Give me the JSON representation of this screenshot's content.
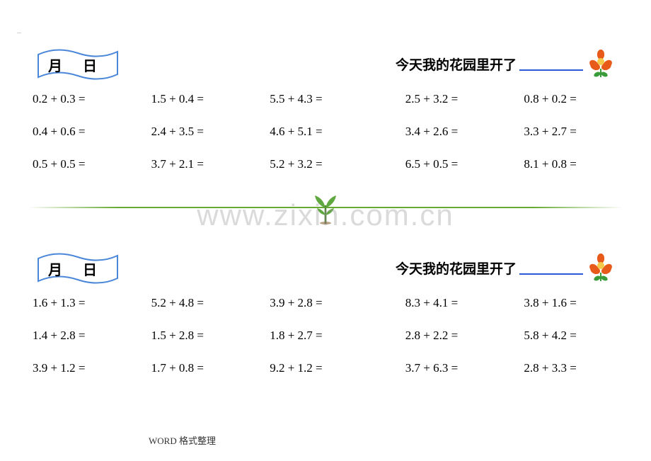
{
  "dots": "...",
  "flag_label": "月 日",
  "garden_text": "今天我的花园里开了",
  "watermark": "www.zixin.com.cn",
  "footer": "WORD 格式整理",
  "colors": {
    "flag_stroke": "#4a87d8",
    "flag_fill": "#ffffff",
    "blank_line": "#2a5bd7",
    "divider": "#66aa33",
    "flower_petal": "#e85a1a",
    "flower_center": "#f7c948",
    "flower_leaf": "#3a9b3a",
    "sprout_leaf": "#5fa83f",
    "sprout_stem": "#4a8030"
  },
  "block1": {
    "problems": [
      "0.2 + 0.3 =",
      "1.5 + 0.4 =",
      "5.5 + 4.3 =",
      "2.5 + 3.2 =",
      "0.8 + 0.2 =",
      "0.4 + 0.6 =",
      "2.4 + 3.5 =",
      "4.6 + 5.1 =",
      "3.4 + 2.6 =",
      "3.3 + 2.7 =",
      "0.5 + 0.5 =",
      "3.7 + 2.1 =",
      "5.2 + 3.2 =",
      "6.5 + 0.5 =",
      "8.1 + 0.8 ="
    ]
  },
  "block2": {
    "problems": [
      "1.6 + 1.3 =",
      "5.2 + 4.8 =",
      "3.9 + 2.8 =",
      "8.3 + 4.1 =",
      "3.8 + 1.6 =",
      "1.4 + 2.8 =",
      "1.5 + 2.8 =",
      "1.8 + 2.7 =",
      "2.8 + 2.2 =",
      "5.8 + 4.2 =",
      "3.9 + 1.2 =",
      "1.7 + 0.8 =",
      "9.2 + 1.2 =",
      "3.7 + 6.3 =",
      "2.8 + 3.3 ="
    ]
  }
}
